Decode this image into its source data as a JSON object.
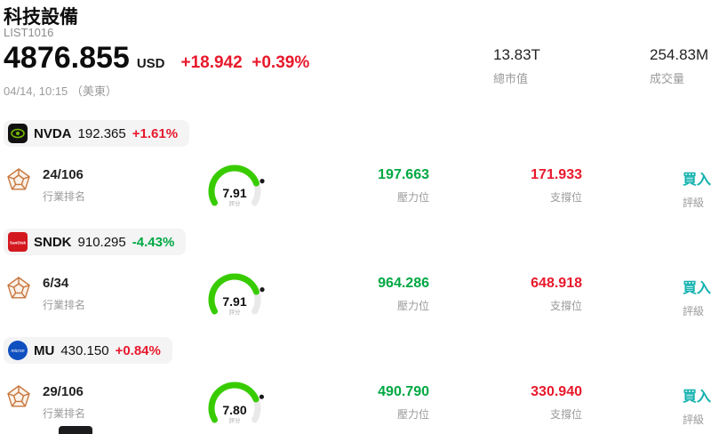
{
  "header": {
    "title": "科技設備",
    "subtitle": "LIST1016",
    "price": "4876.855",
    "currency": "USD",
    "change": "+18.942  +0.39%",
    "datetime": "04/14, 10:15 （美東）",
    "stats": [
      {
        "value": "13.83T",
        "label": "總市值"
      },
      {
        "value": "254.83M",
        "label": "成交量"
      }
    ]
  },
  "labels": {
    "industry_rank": "行業排名",
    "pressure": "壓力位",
    "support": "支撐位",
    "rating": "評級",
    "score": "評分"
  },
  "colors": {
    "up": "#e8192c",
    "down": "#00a843",
    "gauge_green": "#38cc00",
    "rating_buy": "#12b2ae",
    "nvidia_green": "#76b900",
    "sandisk_red": "#d4181f",
    "micron_blue": "#0f4fc0"
  },
  "stocks": [
    {
      "ticker": "NVDA",
      "price": "192.365",
      "change": "+1.61%",
      "trend": "up",
      "rank": "24/106",
      "score": "7.91",
      "pressure": "197.663",
      "support": "171.933",
      "rating": "買入"
    },
    {
      "ticker": "SNDK",
      "price": "910.295",
      "change": "-4.43%",
      "trend": "down",
      "rank": "6/34",
      "score": "7.91",
      "pressure": "964.286",
      "support": "648.918",
      "rating": "買入",
      "logo_text": "SanDisk"
    },
    {
      "ticker": "MU",
      "price": "430.150",
      "change": "+0.84%",
      "trend": "up",
      "rank": "29/106",
      "score": "7.80",
      "pressure": "490.790",
      "support": "330.940",
      "rating": "買入",
      "logo_text": "micron"
    }
  ]
}
